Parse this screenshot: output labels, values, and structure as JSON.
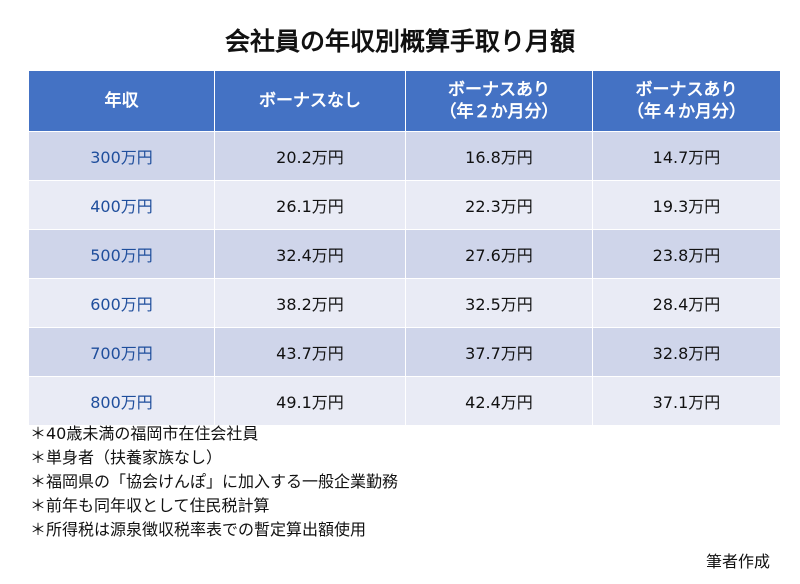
{
  "title": "会社員の年収別概算手取り月額",
  "table": {
    "header": [
      [
        "年収"
      ],
      [
        "ボーナスなし"
      ],
      [
        "ボーナスあり",
        "（年２か月分）"
      ],
      [
        "ボーナスあり",
        "（年４か月分）"
      ]
    ],
    "rows": [
      [
        "300万円",
        "20.2万円",
        "16.8万円",
        "14.7万円"
      ],
      [
        "400万円",
        "26.1万円",
        "22.3万円",
        "19.3万円"
      ],
      [
        "500万円",
        "32.4万円",
        "27.6万円",
        "23.8万円"
      ],
      [
        "600万円",
        "38.2万円",
        "32.5万円",
        "28.4万円"
      ],
      [
        "700万円",
        "43.7万円",
        "37.7万円",
        "32.8万円"
      ],
      [
        "800万円",
        "49.1万円",
        "42.4万円",
        "37.1万円"
      ]
    ]
  },
  "notes": [
    "＊40歳未満の福岡市在住会社員",
    "＊単身者（扶養家族なし）",
    "＊福岡県の「協会けんぽ」に加入する一般企業勤務",
    "＊前年も同年収として住民税計算",
    "＊所得税は源泉徴収税率表での暫定算出額使用"
  ],
  "source": "筆者作成"
}
